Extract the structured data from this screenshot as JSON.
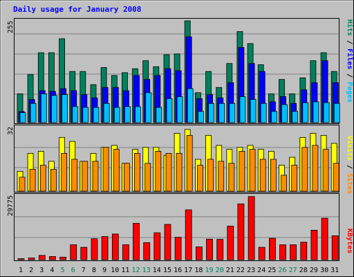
{
  "chart_data": [
    {
      "type": "bar",
      "title": "Daily usage for January 2008",
      "categories": [
        "1",
        "2",
        "3",
        "4",
        "5",
        "6",
        "7",
        "8",
        "9",
        "10",
        "11",
        "12",
        "13",
        "14",
        "15",
        "16",
        "17",
        "18",
        "19",
        "20",
        "21",
        "22",
        "23",
        "24",
        "25",
        "26",
        "27",
        "28",
        "29",
        "30",
        "31"
      ],
      "weekend_days": [
        "5",
        "6",
        "12",
        "13",
        "19",
        "20",
        "26",
        "27"
      ],
      "ymax_label": "255",
      "ylim": [
        0,
        255
      ],
      "right_label": [
        "Pages",
        "Files",
        "Hits"
      ],
      "series": [
        {
          "name": "Hits",
          "color": "#00805c",
          "values": [
            72,
            120,
            175,
            175,
            210,
            128,
            128,
            95,
            138,
            118,
            125,
            135,
            155,
            140,
            170,
            172,
            255,
            75,
            128,
            88,
            148,
            228,
            198,
            145,
            72,
            108,
            72,
            112,
            155,
            175,
            128
          ]
        },
        {
          "name": "Files",
          "color": "#0000ff",
          "values": [
            28,
            58,
            80,
            78,
            85,
            80,
            70,
            62,
            88,
            88,
            80,
            118,
            108,
            118,
            135,
            130,
            215,
            60,
            70,
            62,
            100,
            188,
            148,
            128,
            52,
            65,
            48,
            82,
            100,
            155,
            100
          ]
        },
        {
          "name": "Pages",
          "color": "#00bfff",
          "values": [
            25,
            48,
            72,
            68,
            70,
            40,
            38,
            38,
            48,
            38,
            40,
            40,
            75,
            38,
            60,
            65,
            85,
            28,
            48,
            48,
            48,
            65,
            58,
            48,
            28,
            45,
            28,
            50,
            52,
            50,
            48
          ]
        }
      ]
    },
    {
      "type": "bar",
      "ymax_label": "32",
      "ylim": [
        0,
        32
      ],
      "right_label": [
        "Sites",
        "Visits"
      ],
      "series": [
        {
          "name": "Visits",
          "color": "#ffff00",
          "values": [
            10,
            19,
            20,
            15,
            27,
            25,
            15,
            19,
            22,
            23,
            14,
            21,
            22,
            22,
            18,
            29,
            31,
            16,
            28,
            23,
            21,
            22,
            23,
            21,
            20,
            13,
            17,
            27,
            29,
            28,
            24
          ]
        },
        {
          "name": "Sites",
          "color": "#ff8c00",
          "values": [
            7,
            11,
            13,
            11,
            19,
            16,
            15,
            15,
            22,
            21,
            14,
            19,
            14,
            20,
            19,
            19,
            28,
            13,
            16,
            15,
            14,
            20,
            21,
            16,
            16,
            8,
            13,
            22,
            23,
            21,
            14
          ]
        }
      ]
    },
    {
      "type": "bar",
      "ymax_label": "29775",
      "ylim": [
        0,
        29775
      ],
      "right_label": [
        "KBytes"
      ],
      "series": [
        {
          "name": "KBytes",
          "color": "#ff0000",
          "values": [
            500,
            800,
            2000,
            1500,
            1200,
            7000,
            5800,
            9800,
            10800,
            12000,
            7000,
            17000,
            8000,
            12600,
            16500,
            10500,
            23300,
            6000,
            9600,
            9500,
            15700,
            26100,
            29500,
            5800,
            10000,
            7000,
            7000,
            8200,
            13800,
            19400,
            11200
          ]
        }
      ]
    }
  ]
}
